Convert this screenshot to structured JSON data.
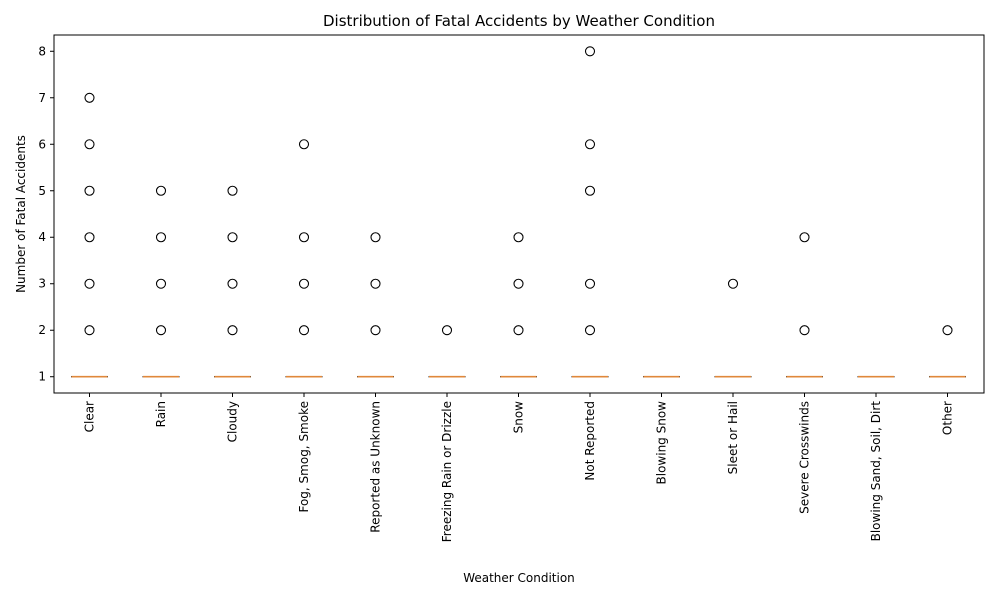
{
  "chart_data": {
    "type": "box",
    "title": "Distribution of Fatal Accidents by Weather Condition",
    "xlabel": "Weather Condition",
    "ylabel": "Number of Fatal Accidents",
    "ylim": [
      0.65,
      8.35
    ],
    "yticks": [
      1,
      2,
      3,
      4,
      5,
      6,
      7,
      8
    ],
    "grid": false,
    "categories": [
      "Clear",
      "Rain",
      "Cloudy",
      "Fog, Smog, Smoke",
      "Reported as Unknown",
      "Freezing Rain or Drizzle",
      "Snow",
      "Not Reported",
      "Blowing Snow",
      "Sleet or Hail",
      "Severe Crosswinds",
      "Blowing Sand, Soil, Dirt",
      "Other"
    ],
    "median": [
      1,
      1,
      1,
      1,
      1,
      1,
      1,
      1,
      1,
      1,
      1,
      1,
      1
    ],
    "q1": [
      1,
      1,
      1,
      1,
      1,
      1,
      1,
      1,
      1,
      1,
      1,
      1,
      1
    ],
    "q3": [
      1,
      1,
      1,
      1,
      1,
      1,
      1,
      1,
      1,
      1,
      1,
      1,
      1
    ],
    "whisker_low": [
      1,
      1,
      1,
      1,
      1,
      1,
      1,
      1,
      1,
      1,
      1,
      1,
      1
    ],
    "whisker_high": [
      1,
      1,
      1,
      1,
      1,
      1,
      1,
      1,
      1,
      1,
      1,
      1,
      1
    ],
    "outliers": [
      [
        2,
        3,
        4,
        5,
        6,
        7
      ],
      [
        2,
        3,
        4,
        5
      ],
      [
        2,
        3,
        4,
        5
      ],
      [
        2,
        3,
        4,
        6
      ],
      [
        2,
        3,
        4
      ],
      [
        2
      ],
      [
        2,
        3,
        4
      ],
      [
        2,
        3,
        5,
        6,
        8
      ],
      [],
      [
        3
      ],
      [
        2,
        4
      ],
      [],
      [
        2
      ]
    ],
    "colors": {
      "median": "#e0883b",
      "box": "#000000",
      "outlier": "#000000"
    }
  }
}
